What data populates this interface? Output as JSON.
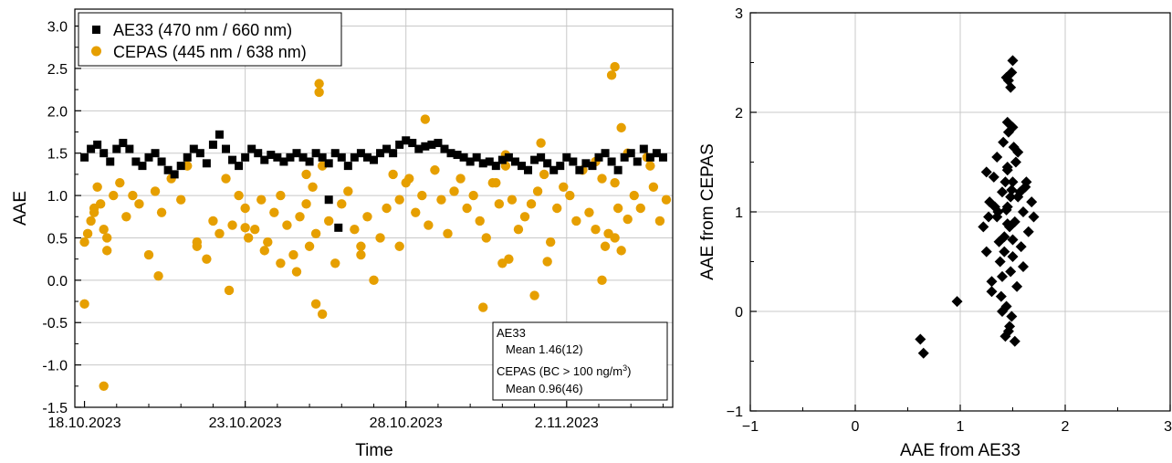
{
  "chart_data": [
    {
      "type": "scatter",
      "xlabel": "Time",
      "ylabel": "AAE",
      "x_tick_labels": [
        "18.10.2023",
        "23.10.2023",
        "28.10.2023",
        "2.11.2023"
      ],
      "x_tick_days": [
        0,
        5,
        10,
        15
      ],
      "xlim_days": [
        -0.3,
        18.3
      ],
      "ylim": [
        -1.5,
        3.2
      ],
      "y_ticks": [
        -1.5,
        -1.0,
        -0.5,
        0.0,
        0.5,
        1.0,
        1.5,
        2.0,
        2.5,
        3.0
      ],
      "y_tick_labels": [
        "-1.5",
        "-1.0",
        "-0.5",
        "0.0",
        "0.5",
        "1.0",
        "1.5",
        "2.0",
        "2.5",
        "3.0"
      ],
      "grid": true,
      "legend_position": "top-left",
      "series": [
        {
          "name": "AE33 (470 nm / 660 nm)",
          "marker": "square",
          "color": "#000000",
          "x_days": [
            0.0,
            0.2,
            0.4,
            0.6,
            0.8,
            1.0,
            1.2,
            1.4,
            1.6,
            1.8,
            2.0,
            2.2,
            2.4,
            2.6,
            2.8,
            3.0,
            3.2,
            3.4,
            3.6,
            3.8,
            4.0,
            4.2,
            4.4,
            4.6,
            4.8,
            5.0,
            5.2,
            5.4,
            5.6,
            5.8,
            6.0,
            6.2,
            6.4,
            6.6,
            6.8,
            7.0,
            7.2,
            7.4,
            7.6,
            7.8,
            8.0,
            8.2,
            8.4,
            8.6,
            8.8,
            9.0,
            9.2,
            9.4,
            9.6,
            9.8,
            10.0,
            10.2,
            10.4,
            10.6,
            10.8,
            11.0,
            11.2,
            11.4,
            11.6,
            11.8,
            12.0,
            12.2,
            12.4,
            12.6,
            12.8,
            13.0,
            13.2,
            13.4,
            13.6,
            13.8,
            14.0,
            14.2,
            14.4,
            14.6,
            14.8,
            15.0,
            15.2,
            15.4,
            15.6,
            15.8,
            16.0,
            16.2,
            16.4,
            16.6,
            16.8,
            17.0,
            17.2,
            17.4,
            17.6,
            17.8,
            18.0,
            7.6,
            7.9
          ],
          "y": [
            1.45,
            1.55,
            1.6,
            1.5,
            1.4,
            1.55,
            1.62,
            1.55,
            1.4,
            1.35,
            1.45,
            1.5,
            1.4,
            1.3,
            1.25,
            1.35,
            1.45,
            1.55,
            1.5,
            1.38,
            1.6,
            1.72,
            1.55,
            1.42,
            1.35,
            1.45,
            1.55,
            1.5,
            1.42,
            1.48,
            1.45,
            1.4,
            1.45,
            1.5,
            1.45,
            1.4,
            1.5,
            1.45,
            1.38,
            1.5,
            1.45,
            1.35,
            1.45,
            1.5,
            1.45,
            1.42,
            1.5,
            1.55,
            1.5,
            1.6,
            1.65,
            1.62,
            1.55,
            1.58,
            1.6,
            1.62,
            1.55,
            1.5,
            1.48,
            1.45,
            1.4,
            1.45,
            1.38,
            1.4,
            1.35,
            1.42,
            1.45,
            1.4,
            1.35,
            1.3,
            1.42,
            1.45,
            1.38,
            1.3,
            1.35,
            1.45,
            1.4,
            1.3,
            1.38,
            1.35,
            1.45,
            1.5,
            1.4,
            1.3,
            1.45,
            1.5,
            1.4,
            1.55,
            1.45,
            1.5,
            1.45,
            0.95,
            0.62
          ]
        },
        {
          "name": "CEPAS (445 nm / 638 nm)",
          "marker": "circle",
          "color": "#E69F00",
          "x_days": [
            0.0,
            0.1,
            0.2,
            0.3,
            0.4,
            0.5,
            0.7,
            0.9,
            0.0,
            0.3,
            0.6,
            1.1,
            1.3,
            1.5,
            1.7,
            2.0,
            2.2,
            2.4,
            2.7,
            3.0,
            3.2,
            3.5,
            3.8,
            4.0,
            4.2,
            4.4,
            4.6,
            4.8,
            5.0,
            5.1,
            5.3,
            5.5,
            5.7,
            5.9,
            6.1,
            6.3,
            6.5,
            6.7,
            6.9,
            7.0,
            7.1,
            7.2,
            7.4,
            7.6,
            7.8,
            8.0,
            8.2,
            8.4,
            8.6,
            8.8,
            9.0,
            9.2,
            9.4,
            9.6,
            9.8,
            10.0,
            10.1,
            10.3,
            10.5,
            10.7,
            10.9,
            11.1,
            11.3,
            11.5,
            11.7,
            11.9,
            12.1,
            12.3,
            12.5,
            12.7,
            12.9,
            13.1,
            13.3,
            13.5,
            13.7,
            13.9,
            14.1,
            14.3,
            14.5,
            14.7,
            14.9,
            15.1,
            15.3,
            15.5,
            15.7,
            15.9,
            16.1,
            16.3,
            16.5,
            16.7,
            16.9,
            17.1,
            17.3,
            17.5,
            17.7,
            17.9,
            18.1,
            0.6,
            2.3,
            4.5,
            5.6,
            6.6,
            7.3,
            8.6,
            9.8,
            10.6,
            12.4,
            13.0,
            14.0,
            16.1,
            16.9,
            17.6,
            7.2,
            7.4,
            16.4,
            16.5,
            16.7,
            14.2,
            14.4,
            13.1,
            12.8,
            3.5,
            5.0,
            6.1,
            6.9,
            7.3,
            13.2,
            16.5,
            16.6,
            15.9,
            16.2,
            0.7
          ],
          "y": [
            0.45,
            0.55,
            0.7,
            0.8,
            1.1,
            0.9,
            0.35,
            1.0,
            -0.28,
            0.85,
            0.6,
            1.15,
            0.75,
            1.0,
            0.9,
            0.3,
            1.05,
            0.8,
            1.2,
            0.95,
            1.35,
            0.4,
            0.25,
            0.7,
            0.55,
            1.2,
            0.65,
            1.0,
            0.85,
            0.5,
            0.6,
            0.95,
            0.45,
            0.8,
            1.0,
            0.65,
            0.3,
            0.75,
            0.9,
            0.4,
            1.1,
            0.55,
            1.35,
            0.7,
            0.2,
            0.9,
            1.05,
            0.6,
            0.4,
            0.75,
            0.0,
            0.5,
            0.85,
            1.25,
            0.4,
            1.15,
            1.2,
            0.8,
            1.0,
            0.65,
            1.3,
            0.95,
            0.55,
            1.05,
            1.2,
            0.85,
            1.0,
            0.7,
            0.5,
            1.15,
            0.9,
            1.35,
            0.95,
            0.6,
            0.75,
            0.9,
            1.05,
            1.25,
            0.45,
            0.85,
            1.1,
            1.0,
            0.7,
            1.3,
            0.8,
            1.4,
            1.2,
            0.55,
            1.15,
            0.35,
            1.5,
            1.0,
            0.85,
            1.45,
            1.1,
            0.7,
            0.95,
            -1.25,
            0.05,
            -0.12,
            0.35,
            0.1,
            2.22,
            0.3,
            0.95,
            1.9,
            -0.32,
            0.2,
            -0.18,
            0.0,
            0.72,
            1.35,
            -0.28,
            -0.4,
            2.42,
            2.52,
            1.8,
            1.62,
            0.22,
            1.48,
            1.15,
            0.45,
            0.62,
            0.2,
            1.25,
            2.32,
            0.25,
            0.5,
            0.85,
            0.6,
            0.4,
            0.5
          ]
        }
      ],
      "annotation": {
        "line1": "AE33",
        "line2": "Mean  1.46(12)",
        "line3_main": "CEPAS (BC > 100 ng/m",
        "line3_sup": "3",
        "line3_end": ")",
        "line4": "Mean  0.96(46)"
      }
    },
    {
      "type": "scatter",
      "xlabel": "AAE  from AE33",
      "ylabel": "AAE from CEPAS",
      "xlim": [
        -1,
        3
      ],
      "ylim": [
        -1,
        3
      ],
      "x_ticks": [
        -1,
        0,
        1,
        2,
        3
      ],
      "y_ticks": [
        -1,
        0,
        1,
        2,
        3
      ],
      "x_tick_labels": [
        "−1",
        "0",
        "1",
        "2",
        "3"
      ],
      "y_tick_labels": [
        "−1",
        "0",
        "1",
        "2",
        "3"
      ],
      "grid": true,
      "series": [
        {
          "marker": "diamond",
          "color": "#000000",
          "x": [
            0.62,
            0.65,
            0.97,
            1.22,
            1.25,
            1.28,
            1.3,
            1.32,
            1.35,
            1.38,
            1.4,
            1.42,
            1.45,
            1.48,
            1.5,
            1.52,
            1.55,
            1.58,
            1.6,
            1.62,
            1.65,
            1.68,
            1.7,
            1.25,
            1.3,
            1.35,
            1.4,
            1.45,
            1.5,
            1.55,
            1.6,
            1.33,
            1.37,
            1.43,
            1.47,
            1.53,
            1.57,
            1.27,
            1.63,
            1.41,
            1.46,
            1.51,
            1.39,
            1.44,
            1.49,
            1.54,
            1.36,
            1.42,
            1.48,
            1.45,
            1.5,
            1.47,
            1.43,
            1.52,
            1.4,
            1.46,
            1.49,
            1.44,
            1.48,
            1.5,
            1.46,
            1.45,
            1.49,
            1.45,
            1.44,
            1.5
          ],
          "y": [
            -0.28,
            -0.42,
            0.1,
            0.85,
            0.6,
            1.1,
            0.3,
            1.35,
            0.95,
            0.5,
            1.2,
            0.75,
            1.05,
            0.4,
            1.3,
            0.9,
            1.15,
            0.65,
            1.0,
            1.25,
            0.8,
            1.1,
            0.95,
            1.4,
            0.2,
            1.55,
            0.35,
            1.45,
            0.55,
            1.6,
            0.45,
            1.05,
            0.7,
            1.3,
            0.85,
            1.5,
            1.2,
            0.95,
            1.3,
            1.7,
            1.8,
            1.65,
            0.15,
            0.05,
            -0.05,
            0.25,
            1.0,
            0.6,
            1.15,
            1.9,
            1.85,
            -0.15,
            -0.25,
            -0.3,
            0.0,
            -0.2,
            2.4,
            2.35,
            2.25,
            2.52,
            2.32,
            1.42,
            1.22,
            0.88,
            1.02,
            0.72
          ]
        }
      ]
    }
  ]
}
